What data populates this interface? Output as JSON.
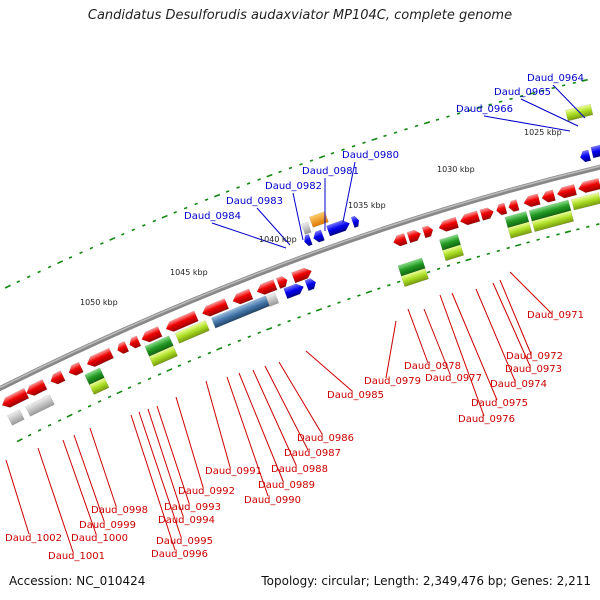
{
  "title": "Candidatus Desulforudis audaxviator MP104C, complete genome",
  "footer": {
    "accession": "Accession: NC_010424",
    "topology": "Topology: circular; Length: 2,349,476 bp; Genes: 2,211"
  },
  "colors": {
    "label_blue": "#0000cc",
    "label_red": "#cc0000",
    "tick_green": "#118811",
    "backbone": "#777777"
  },
  "kbp_labels": [
    "1025 kbp",
    "1030 kbp",
    "1035 kbp",
    "1040 kbp",
    "1045 kbp",
    "1050 kbp"
  ],
  "genes_top": [
    "Daud_0964",
    "Daud_0965",
    "Daud_0966",
    "Daud_0980",
    "Daud_0981",
    "Daud_0982",
    "Daud_0983",
    "Daud_0984"
  ],
  "genes_bottom": [
    "Daud_0971",
    "Daud_0972",
    "Daud_0973",
    "Daud_0974",
    "Daud_0975",
    "Daud_0976",
    "Daud_0977",
    "Daud_0978",
    "Daud_0979",
    "Daud_0985",
    "Daud_0986",
    "Daud_0987",
    "Daud_0988",
    "Daud_0989",
    "Daud_0990",
    "Daud_0991",
    "Daud_0992",
    "Daud_0993",
    "Daud_0994",
    "Daud_0995",
    "Daud_0996",
    "Daud_0998",
    "Daud_0999",
    "Daud_1000",
    "Daud_1001",
    "Daud_1002"
  ]
}
